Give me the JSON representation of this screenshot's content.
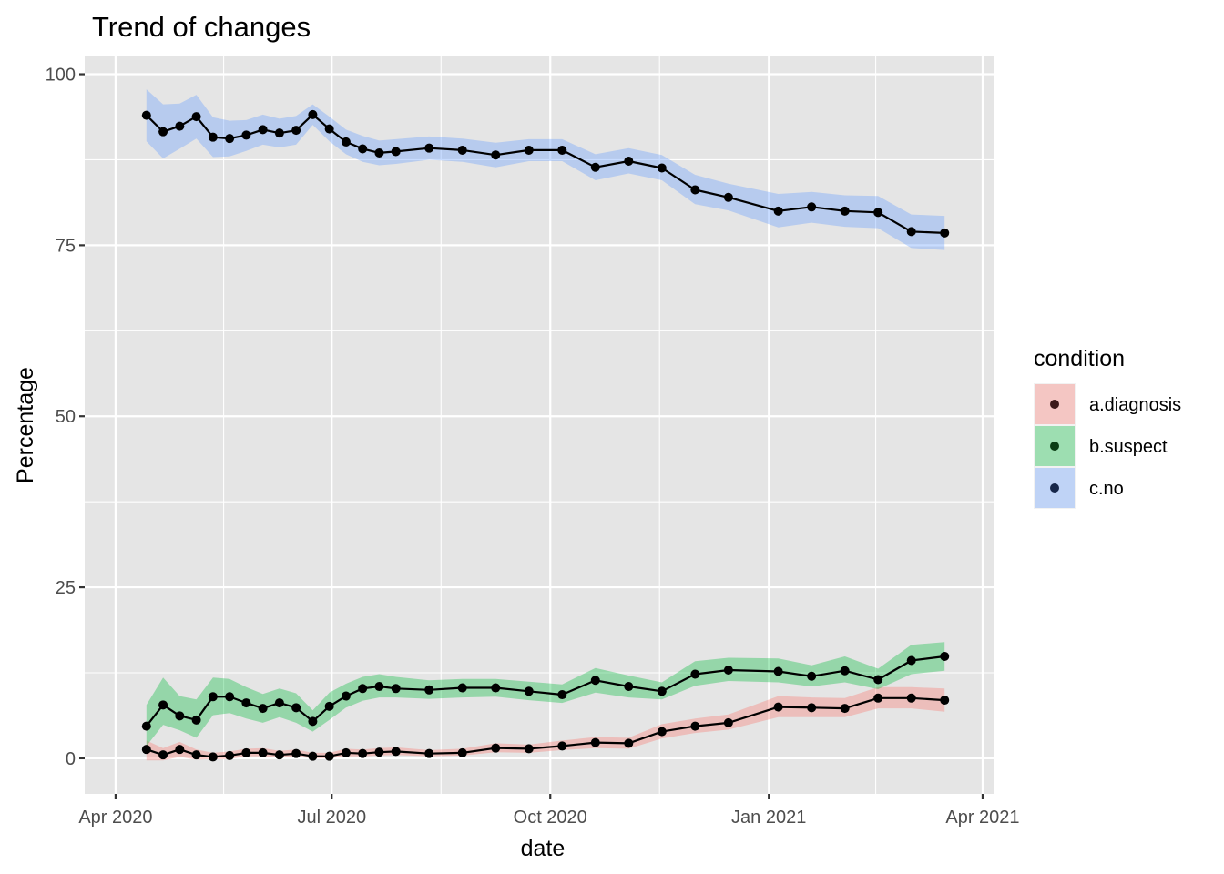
{
  "chart_data": {
    "type": "line",
    "title": "Trend of changes",
    "xlabel": "date",
    "ylabel": "Percentage",
    "x_ticks": [
      {
        "date": "2020-04-01",
        "label": "Apr 2020"
      },
      {
        "date": "2020-07-01",
        "label": "Jul 2020"
      },
      {
        "date": "2020-10-01",
        "label": "Oct 2020"
      },
      {
        "date": "2021-01-01",
        "label": "Jan 2021"
      },
      {
        "date": "2021-04-01",
        "label": "Apr 2021"
      }
    ],
    "y_ticks": [
      0,
      25,
      50,
      75,
      100
    ],
    "xlim": [
      "2020-03-19",
      "2021-04-06"
    ],
    "ylim": [
      -5.2,
      102.6
    ],
    "grid": true,
    "legend": {
      "title": "condition",
      "placement": "right"
    },
    "colors": {
      "panel": "#E5E5E5",
      "grid": "#FFFFFF",
      "line": "#000000",
      "point": "#000000"
    },
    "series": [
      {
        "name": "a.diagnosis",
        "color": "#F8766D",
        "point_color": "#3D1A1A",
        "x": [
          "2020-04-14",
          "2020-04-21",
          "2020-04-28",
          "2020-05-05",
          "2020-05-12",
          "2020-05-19",
          "2020-05-26",
          "2020-06-02",
          "2020-06-09",
          "2020-06-16",
          "2020-06-23",
          "2020-06-30",
          "2020-07-07",
          "2020-07-14",
          "2020-07-21",
          "2020-07-28",
          "2020-08-11",
          "2020-08-25",
          "2020-09-08",
          "2020-09-22",
          "2020-10-06",
          "2020-10-20",
          "2020-11-03",
          "2020-11-17",
          "2020-12-01",
          "2020-12-15",
          "2021-01-05",
          "2021-01-19",
          "2021-02-02",
          "2021-02-16",
          "2021-03-02",
          "2021-03-16"
        ],
        "y": [
          1.3,
          0.5,
          1.3,
          0.5,
          0.2,
          0.4,
          0.8,
          0.8,
          0.5,
          0.7,
          0.3,
          0.3,
          0.8,
          0.7,
          0.9,
          1.0,
          0.7,
          0.8,
          1.5,
          1.4,
          1.8,
          2.3,
          2.2,
          3.9,
          4.7,
          5.2,
          7.5,
          7.4,
          7.3,
          8.8,
          8.8,
          8.5
        ],
        "lower": [
          -0.3,
          -0.3,
          0.2,
          -0.2,
          -0.1,
          -0.1,
          0.3,
          0.3,
          0.1,
          0.2,
          0.0,
          0.0,
          0.3,
          0.3,
          0.4,
          0.5,
          0.3,
          0.4,
          0.9,
          0.8,
          1.2,
          1.5,
          1.4,
          2.9,
          3.7,
          4.2,
          6.0,
          6.0,
          6.0,
          7.3,
          7.3,
          6.8
        ],
        "upper": [
          2.6,
          1.5,
          2.4,
          1.3,
          0.8,
          1.0,
          1.4,
          1.5,
          1.1,
          1.3,
          0.8,
          0.8,
          1.4,
          1.3,
          1.5,
          1.6,
          1.2,
          1.4,
          2.2,
          2.0,
          2.6,
          3.1,
          3.0,
          5.0,
          5.8,
          6.4,
          9.1,
          8.9,
          8.8,
          10.4,
          10.4,
          10.2
        ]
      },
      {
        "name": "b.suspect",
        "color": "#00BA38",
        "point_color": "#0A3D14",
        "x": [
          "2020-04-14",
          "2020-04-21",
          "2020-04-28",
          "2020-05-05",
          "2020-05-12",
          "2020-05-19",
          "2020-05-26",
          "2020-06-02",
          "2020-06-09",
          "2020-06-16",
          "2020-06-23",
          "2020-06-30",
          "2020-07-07",
          "2020-07-14",
          "2020-07-21",
          "2020-07-28",
          "2020-08-11",
          "2020-08-25",
          "2020-09-08",
          "2020-09-22",
          "2020-10-06",
          "2020-10-20",
          "2020-11-03",
          "2020-11-17",
          "2020-12-01",
          "2020-12-15",
          "2021-01-05",
          "2021-01-19",
          "2021-02-02",
          "2021-02-16",
          "2021-03-02",
          "2021-03-16"
        ],
        "y": [
          4.7,
          7.8,
          6.2,
          5.6,
          9.0,
          9.0,
          8.1,
          7.3,
          8.1,
          7.4,
          5.4,
          7.6,
          9.1,
          10.2,
          10.5,
          10.2,
          10.0,
          10.3,
          10.3,
          9.8,
          9.3,
          11.4,
          10.5,
          9.8,
          12.3,
          12.9,
          12.7,
          12.0,
          12.8,
          11.5,
          14.3,
          14.9
        ],
        "lower": [
          1.8,
          4.9,
          4.1,
          3.0,
          6.3,
          6.6,
          5.8,
          5.2,
          6.0,
          5.2,
          3.9,
          5.6,
          7.4,
          8.4,
          8.9,
          8.9,
          8.7,
          8.9,
          9.0,
          8.5,
          8.1,
          9.6,
          8.9,
          8.6,
          10.6,
          11.3,
          11.1,
          10.5,
          11.1,
          10.1,
          12.3,
          12.8
        ],
        "upper": [
          7.8,
          11.8,
          9.1,
          8.6,
          11.8,
          11.6,
          10.4,
          9.4,
          10.2,
          9.5,
          7.0,
          9.6,
          10.9,
          11.9,
          12.3,
          11.9,
          11.4,
          11.6,
          11.6,
          11.2,
          10.8,
          13.2,
          12.1,
          11.1,
          14.2,
          14.7,
          14.6,
          13.6,
          14.9,
          13.1,
          16.6,
          17.0
        ]
      },
      {
        "name": "c.no",
        "color": "#619CFF",
        "point_color": "#17274A",
        "x": [
          "2020-04-14",
          "2020-04-21",
          "2020-04-28",
          "2020-05-05",
          "2020-05-12",
          "2020-05-19",
          "2020-05-26",
          "2020-06-02",
          "2020-06-09",
          "2020-06-16",
          "2020-06-23",
          "2020-06-30",
          "2020-07-07",
          "2020-07-14",
          "2020-07-21",
          "2020-07-28",
          "2020-08-11",
          "2020-08-25",
          "2020-09-08",
          "2020-09-22",
          "2020-10-06",
          "2020-10-20",
          "2020-11-03",
          "2020-11-17",
          "2020-12-01",
          "2020-12-15",
          "2021-01-05",
          "2021-01-19",
          "2021-02-02",
          "2021-02-16",
          "2021-03-02",
          "2021-03-16"
        ],
        "y": [
          94.0,
          91.6,
          92.4,
          93.8,
          90.8,
          90.6,
          91.1,
          91.9,
          91.4,
          91.8,
          94.1,
          92.0,
          90.1,
          89.1,
          88.5,
          88.7,
          89.2,
          88.9,
          88.2,
          88.9,
          88.9,
          86.4,
          87.3,
          86.3,
          83.1,
          82.0,
          80.0,
          80.6,
          80.0,
          79.8,
          77.0,
          76.8
        ],
        "lower": [
          90.2,
          87.7,
          89.1,
          90.6,
          87.9,
          88.0,
          88.8,
          89.7,
          89.3,
          89.7,
          92.6,
          90.2,
          88.3,
          87.2,
          86.7,
          86.9,
          87.5,
          87.2,
          86.4,
          87.3,
          87.3,
          84.5,
          85.5,
          84.5,
          81.0,
          80.1,
          77.6,
          78.3,
          77.7,
          77.5,
          74.6,
          74.3
        ],
        "upper": [
          97.8,
          95.6,
          95.7,
          97.0,
          93.7,
          93.2,
          93.3,
          94.1,
          93.5,
          93.9,
          95.6,
          93.8,
          91.9,
          91.0,
          90.3,
          90.5,
          90.9,
          90.6,
          90.0,
          90.5,
          90.5,
          88.3,
          89.2,
          88.2,
          85.3,
          84.0,
          82.5,
          82.8,
          82.3,
          82.2,
          79.5,
          79.3
        ]
      }
    ]
  }
}
